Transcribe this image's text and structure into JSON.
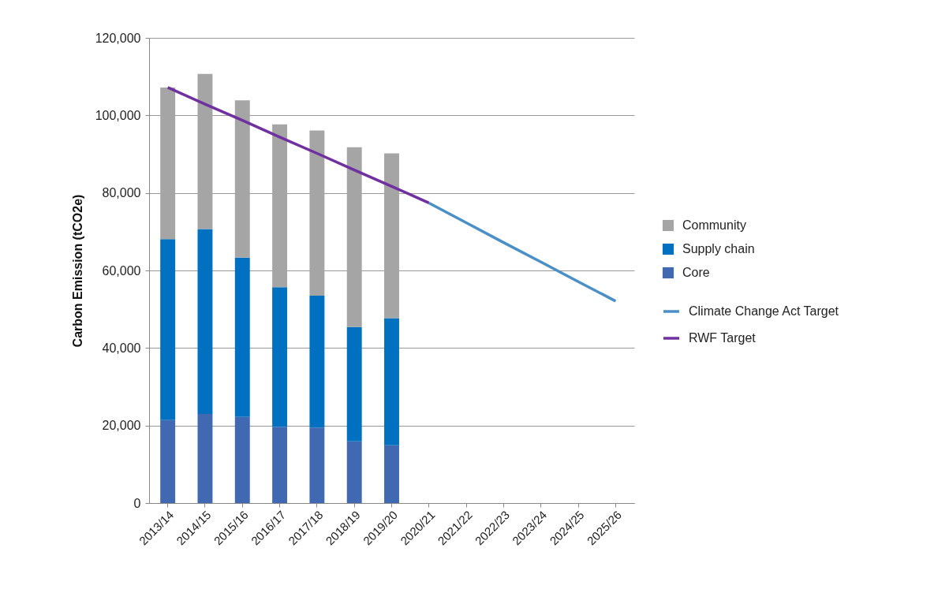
{
  "chart_data": {
    "type": "bar",
    "stacked": true,
    "ylabel": "Carbon Emission (tCO2e)",
    "categories": [
      "2013/14",
      "2014/15",
      "2015/16",
      "2016/17",
      "2017/18",
      "2018/19",
      "2019/20",
      "2020/21",
      "2021/22",
      "2022/23",
      "2023/24",
      "2024/25",
      "2025/26"
    ],
    "series": [
      {
        "name": "Core",
        "color": "#4169b2",
        "values": [
          21400,
          23000,
          22200,
          19700,
          19500,
          15900,
          14900,
          null,
          null,
          null,
          null,
          null,
          null
        ]
      },
      {
        "name": "Supply chain",
        "color": "#0070c0",
        "values": [
          46700,
          47700,
          41100,
          36000,
          34000,
          29500,
          32800,
          null,
          null,
          null,
          null,
          null,
          null
        ]
      },
      {
        "name": "Community",
        "color": "#a5a5a5",
        "values": [
          39100,
          40000,
          40600,
          42000,
          42600,
          46400,
          42500,
          null,
          null,
          null,
          null,
          null,
          null
        ]
      },
      {
        "name": "Climate Change Act Target",
        "type": "line",
        "color": "#4a8fc6",
        "values": [
          null,
          null,
          null,
          null,
          null,
          null,
          null,
          77400,
          72300,
          67200,
          62200,
          57100,
          52100
        ]
      },
      {
        "name": "RWF Target",
        "type": "line",
        "color": "#7030a0",
        "values": [
          107200,
          102900,
          98700,
          94400,
          90200,
          85900,
          81700,
          77400,
          null,
          null,
          null,
          null,
          null
        ]
      }
    ],
    "ylim": [
      0,
      120000
    ],
    "yticks": [
      0,
      {
        "value": 20000,
        "label": "20,000"
      },
      {
        "value": 40000,
        "label": "40,000"
      },
      {
        "value": 60000,
        "label": "60,000"
      },
      {
        "value": 80000,
        "label": "80,000"
      },
      {
        "value": 100000,
        "label": "100,000"
      },
      {
        "value": 120000,
        "label": "120,000"
      }
    ],
    "grid": "y",
    "legend": "right",
    "line_style": "solid",
    "marker": "none"
  }
}
